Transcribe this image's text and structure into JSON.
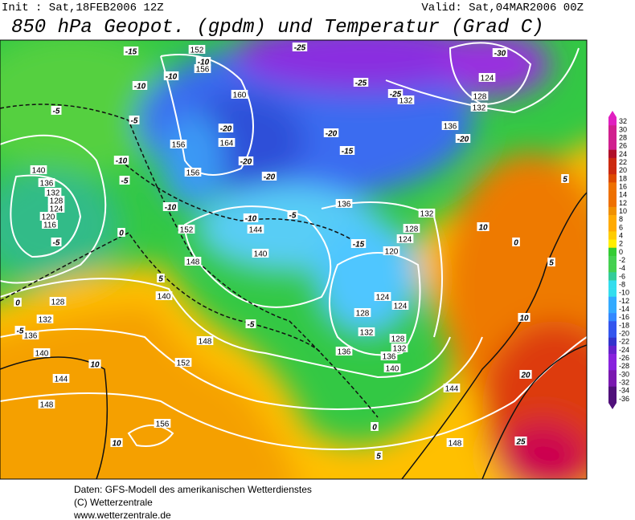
{
  "header": {
    "init": "Init : Sat,18FEB2006 12Z",
    "valid": "Valid: Sat,04MAR2006 00Z",
    "title": "850 hPa Geopot. (gpdm) und Temperatur (Grad C)"
  },
  "map": {
    "geopotential_labels": [
      152,
      156,
      160,
      164,
      156,
      156,
      140,
      136,
      132,
      128,
      124,
      120,
      116,
      152,
      144,
      140,
      148,
      128,
      132,
      136,
      140,
      144,
      148,
      140,
      148,
      152,
      156,
      136,
      132,
      128,
      124,
      124,
      128,
      132,
      136,
      140,
      144,
      148,
      120,
      124,
      128,
      132,
      136,
      136,
      132,
      124,
      128,
      132
    ],
    "temperature_labels": [
      -15,
      -10,
      -10,
      -10,
      -5,
      -5,
      -10,
      -5,
      -10,
      -20,
      -20,
      -20,
      -25,
      -25,
      -25,
      -30,
      -20,
      -15,
      -20,
      -10,
      -5,
      -15,
      -5,
      0,
      5,
      0,
      -5,
      -5,
      10,
      0,
      5,
      10,
      5,
      10,
      0,
      5,
      10,
      20,
      25
    ]
  },
  "colorbar": {
    "labels": [
      32,
      30,
      28,
      26,
      24,
      22,
      20,
      18,
      16,
      14,
      12,
      10,
      8,
      6,
      4,
      2,
      0,
      -2,
      -4,
      -6,
      -8,
      -10,
      -12,
      -14,
      -16,
      -18,
      -20,
      -22,
      -24,
      -26,
      -28,
      -30,
      -32,
      -34,
      -36
    ]
  },
  "footer": {
    "lines": [
      "Daten: GFS-Modell des amerikanischen Wetterdienstes",
      "(C) Wetterzentrale",
      "www.wetterzentrale.de"
    ]
  }
}
